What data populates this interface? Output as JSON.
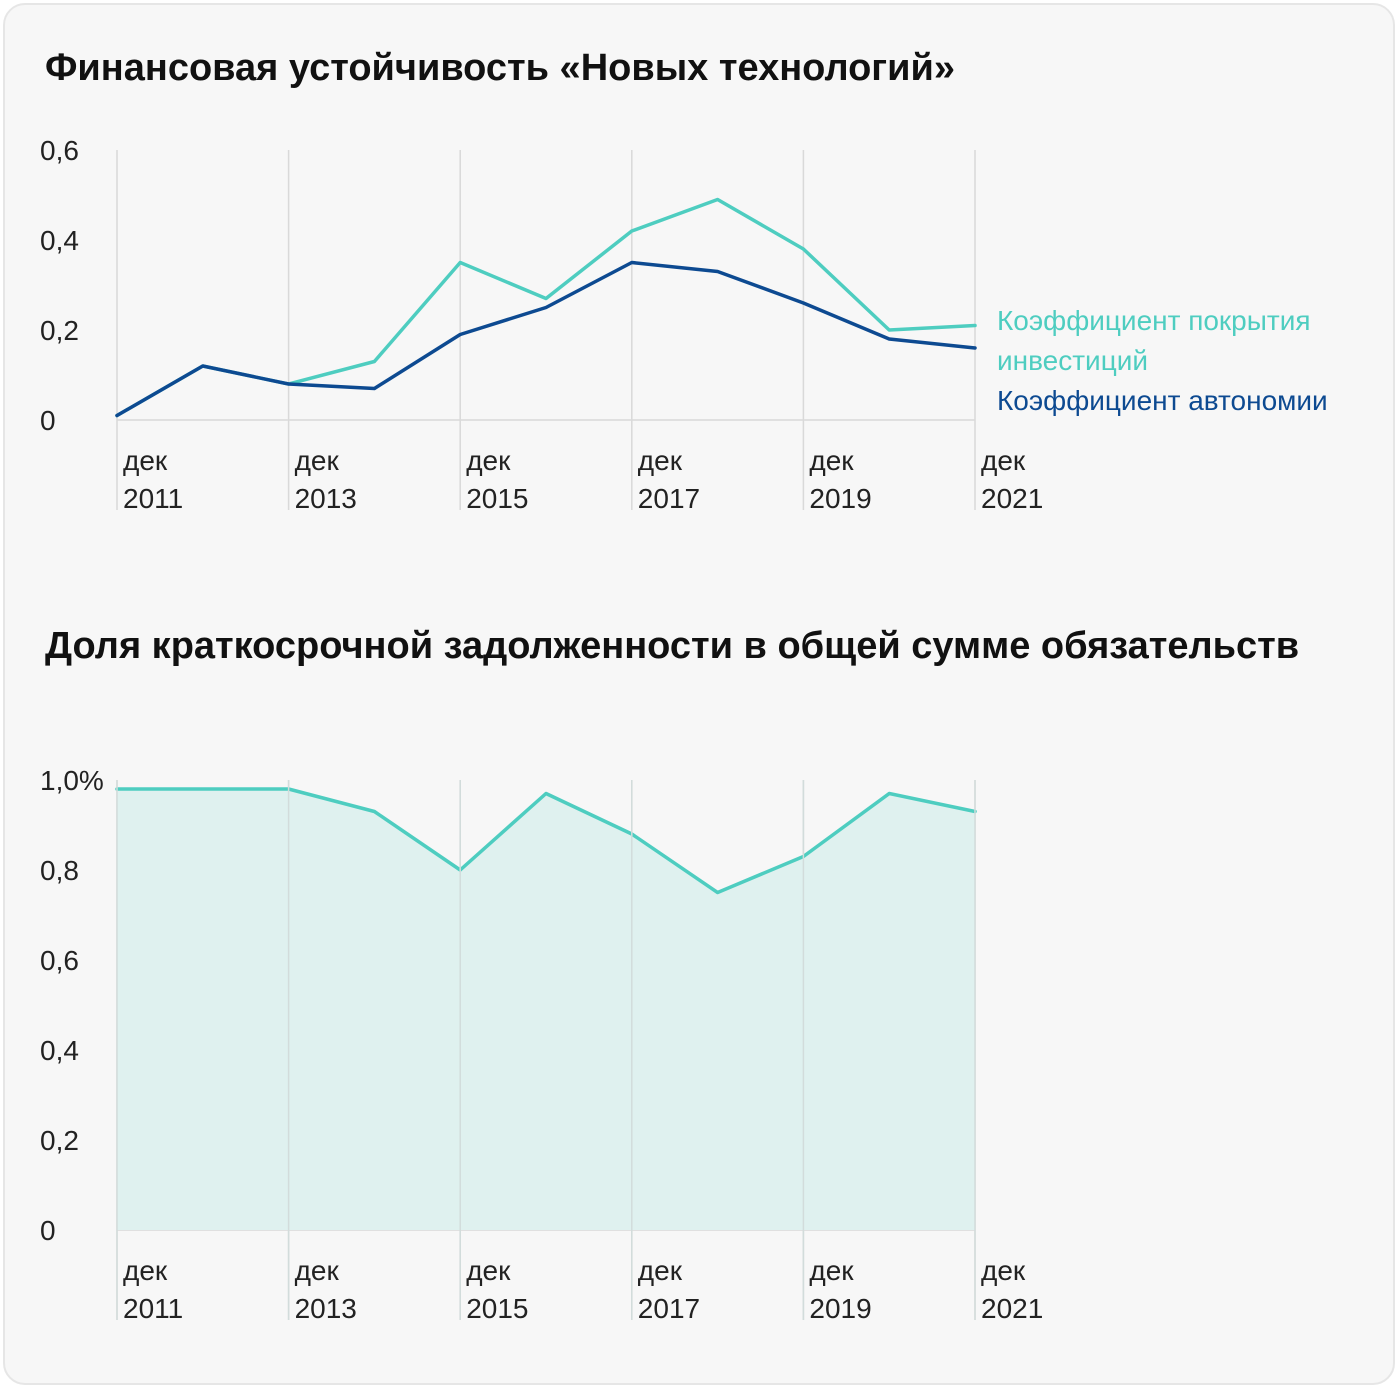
{
  "chart_data": [
    {
      "type": "line",
      "title": "Финансовая устойчивость «Новых технологий»",
      "x": [
        "дек 2011",
        "дек 2012",
        "дек 2013",
        "дек 2014",
        "дек 2015",
        "дек 2016",
        "дек 2017",
        "дек 2018",
        "дек 2019",
        "дек 2020",
        "дек 2021"
      ],
      "x_tick_labels": [
        {
          "month": "дек",
          "year": "2011"
        },
        {
          "month": "дек",
          "year": "2013"
        },
        {
          "month": "дек",
          "year": "2015"
        },
        {
          "month": "дек",
          "year": "2017"
        },
        {
          "month": "дек",
          "year": "2019"
        },
        {
          "month": "дек",
          "year": "2021"
        }
      ],
      "y_ticks": [
        "0",
        "0,2",
        "0,4",
        "0,6"
      ],
      "ylim": [
        0,
        0.6
      ],
      "legend_placement": "right",
      "series": [
        {
          "name": "Коэффициент покрытия инвестиций",
          "name_lines": [
            "Коэффициент покрытия",
            "инвестиций"
          ],
          "color": "#4ecdc0",
          "values": [
            0.01,
            0.12,
            0.08,
            0.13,
            0.35,
            0.27,
            0.42,
            0.49,
            0.38,
            0.2,
            0.21
          ]
        },
        {
          "name": "Коэффициент автономии",
          "name_lines": [
            "Коэффициент автономии"
          ],
          "color": "#0d4a91",
          "values": [
            0.01,
            0.12,
            0.08,
            0.07,
            0.19,
            0.25,
            0.35,
            0.33,
            0.26,
            0.18,
            0.16
          ]
        }
      ]
    },
    {
      "type": "area",
      "title": "Доля краткосрочной задолженности в общей сумме обязательств",
      "x": [
        "дек 2011",
        "дек 2012",
        "дек 2013",
        "дек 2014",
        "дек 2015",
        "дек 2016",
        "дек 2017",
        "дек 2018",
        "дек 2019",
        "дек 2020",
        "дек 2021"
      ],
      "x_tick_labels": [
        {
          "month": "дек",
          "year": "2011"
        },
        {
          "month": "дек",
          "year": "2013"
        },
        {
          "month": "дек",
          "year": "2015"
        },
        {
          "month": "дек",
          "year": "2017"
        },
        {
          "month": "дек",
          "year": "2019"
        },
        {
          "month": "дек",
          "year": "2021"
        }
      ],
      "y_ticks": [
        "0",
        "0,2",
        "0,4",
        "0,6",
        "0,8",
        "1,0%"
      ],
      "ylim": [
        0,
        1.0
      ],
      "series": [
        {
          "color": "#4ecdc0",
          "fill": "#dff1ef",
          "values": [
            0.98,
            0.98,
            0.98,
            0.93,
            0.8,
            0.97,
            0.88,
            0.75,
            0.83,
            0.97,
            0.93
          ]
        }
      ]
    }
  ]
}
